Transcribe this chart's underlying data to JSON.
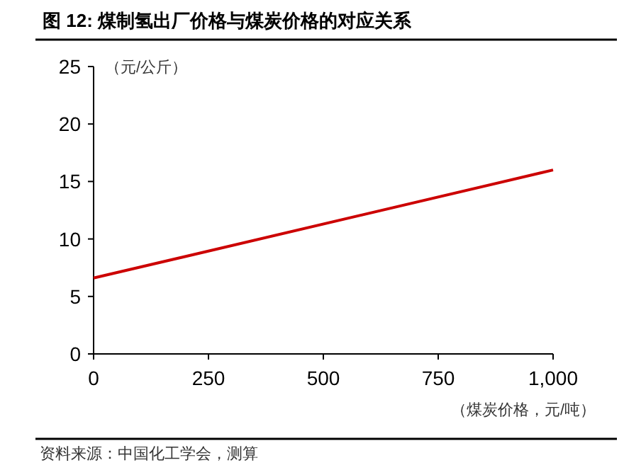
{
  "chart_data": {
    "type": "line",
    "title": "图 12: 煤制氢出厂价格与煤炭价格的对应关系",
    "ylabel": "（元/公斤）",
    "xlabel": "（煤炭价格，元/吨）",
    "x": [
      0,
      1000
    ],
    "series": [
      {
        "color": "#cc0000",
        "values": [
          6.6,
          16.0
        ]
      }
    ],
    "xlim": [
      0,
      1000
    ],
    "xticks": [
      0,
      250,
      500,
      750,
      {
        "value": 1000,
        "label": "1,000"
      }
    ],
    "ylim": [
      0,
      25
    ],
    "yticks": [
      0,
      5,
      10,
      15,
      20,
      25
    ],
    "annotations": [
      "资料来源：中国化工学会，测算"
    ]
  }
}
